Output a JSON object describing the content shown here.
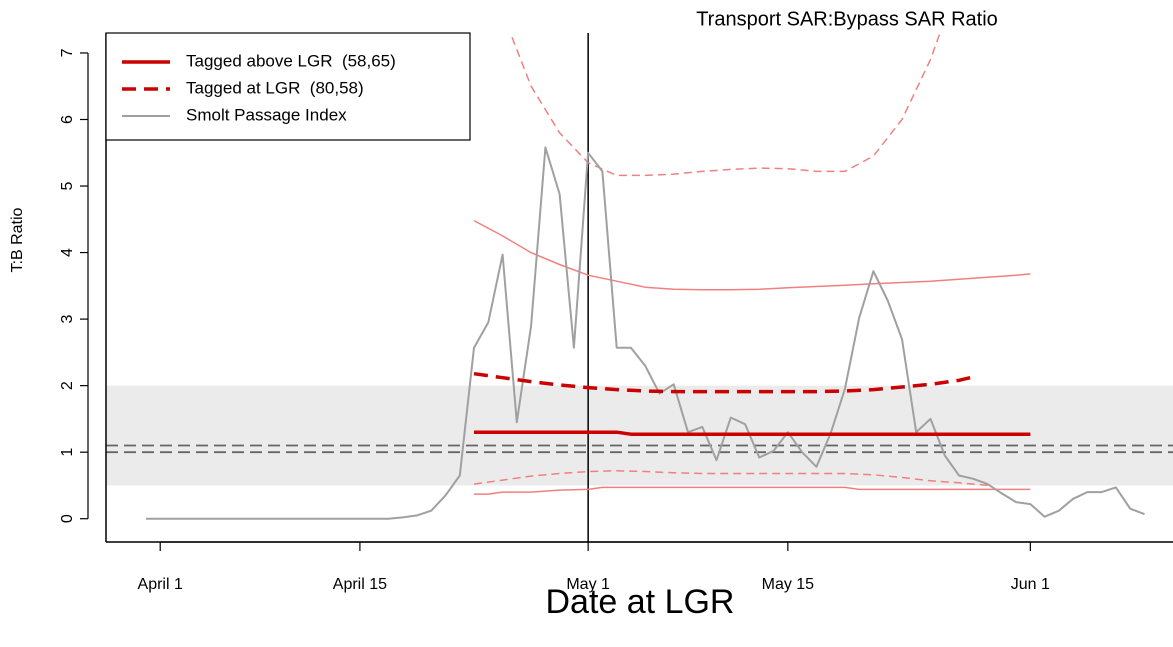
{
  "chart_data": {
    "type": "line",
    "title": "Transport SAR:Bypass SAR Ratio",
    "x_label": "Date at LGR",
    "y_label": "T:B Ratio",
    "xlim": [
      -3.8,
      71
    ],
    "ylim": [
      -0.35,
      7.3
    ],
    "xticks": [
      {
        "value": 0,
        "label": "April 1"
      },
      {
        "value": 14,
        "label": "April 15"
      },
      {
        "value": 30,
        "label": "May 1"
      },
      {
        "value": 44,
        "label": "May 15"
      },
      {
        "value": 61,
        "label": "Jun 1"
      }
    ],
    "yticks": [
      0,
      1,
      2,
      3,
      4,
      5,
      6,
      7
    ],
    "band": [
      0.5,
      2
    ],
    "hlines": [
      1,
      1.1
    ],
    "vline": 30,
    "legend": "top-left",
    "series": [
      {
        "name": "Tagged above LGR  (58,65)",
        "color": "#cc0000",
        "style": "solid",
        "width": 3.5,
        "x": [
          22,
          26,
          30,
          32,
          33,
          61
        ],
        "values": [
          1.3,
          1.3,
          1.3,
          1.3,
          1.27,
          1.27
        ]
      },
      {
        "name": "Tagged at LGR  (80,58)",
        "color": "#cc0000",
        "style": "dashed",
        "width": 3.5,
        "x": [
          22,
          24,
          26,
          28,
          30,
          32,
          34,
          36,
          38,
          40,
          42,
          44,
          46,
          48,
          50,
          52,
          54,
          56,
          57
        ],
        "values": [
          2.18,
          2.12,
          2.06,
          2.01,
          1.97,
          1.94,
          1.92,
          1.91,
          1.91,
          1.91,
          1.91,
          1.91,
          1.91,
          1.92,
          1.94,
          1.98,
          2.02,
          2.08,
          2.13
        ]
      },
      {
        "name": "Smolt Passage Index",
        "color": "#a0a0a0",
        "style": "solid",
        "width": 2,
        "x": [
          -1,
          16,
          17,
          18,
          19,
          20,
          21,
          22,
          23,
          24,
          25,
          26,
          27,
          28,
          29,
          30,
          31,
          32,
          33,
          34,
          35,
          36,
          37,
          38,
          39,
          40,
          41,
          42,
          43,
          44,
          45,
          46,
          47,
          48,
          49,
          50,
          51,
          52,
          53,
          54,
          55,
          56,
          57,
          58,
          59,
          60,
          61,
          62,
          63,
          64,
          65,
          66,
          67,
          68,
          69
        ],
        "values": [
          0,
          0,
          0.02,
          0.05,
          0.12,
          0.35,
          0.65,
          2.57,
          2.95,
          3.97,
          1.45,
          2.9,
          5.58,
          4.88,
          2.57,
          5.5,
          5.22,
          2.57,
          2.57,
          2.3,
          1.88,
          2.02,
          1.3,
          1.38,
          0.88,
          1.52,
          1.42,
          0.92,
          1.02,
          1.3,
          1.0,
          0.78,
          1.28,
          1.95,
          3.02,
          3.72,
          3.28,
          2.7,
          1.3,
          1.5,
          0.95,
          0.65,
          0.6,
          0.52,
          0.38,
          0.25,
          0.22,
          0.03,
          0.12,
          0.3,
          0.4,
          0.4,
          0.47,
          0.15,
          0.07
        ]
      },
      {
        "color": "#f08080",
        "style": "solid",
        "width": 1.5,
        "x": [
          22,
          24,
          26,
          28,
          30,
          32,
          34,
          36,
          38,
          40,
          42,
          44,
          46,
          48,
          50,
          52,
          54,
          56,
          58,
          60,
          61
        ],
        "values": [
          4.48,
          4.25,
          4.0,
          3.82,
          3.66,
          3.57,
          3.48,
          3.45,
          3.44,
          3.44,
          3.45,
          3.47,
          3.49,
          3.51,
          3.53,
          3.55,
          3.57,
          3.6,
          3.63,
          3.66,
          3.68
        ]
      },
      {
        "color": "#f08080",
        "style": "solid",
        "width": 1.5,
        "x": [
          22,
          23,
          24,
          26,
          28,
          30,
          31,
          48,
          49,
          61
        ],
        "values": [
          0.37,
          0.37,
          0.4,
          0.4,
          0.43,
          0.44,
          0.47,
          0.47,
          0.44,
          0.44
        ]
      },
      {
        "color": "#f08080",
        "style": "dashed",
        "width": 1.5,
        "x": [
          24,
          26,
          28,
          30,
          32,
          34,
          36,
          38,
          40,
          42,
          44,
          46,
          48,
          50,
          52,
          54,
          55
        ],
        "values": [
          7.6,
          6.5,
          5.8,
          5.35,
          5.16,
          5.16,
          5.18,
          5.22,
          5.25,
          5.27,
          5.26,
          5.22,
          5.22,
          5.45,
          6.0,
          6.9,
          7.5
        ]
      },
      {
        "color": "#f08080",
        "style": "dashed",
        "width": 1.5,
        "x": [
          22,
          24,
          26,
          28,
          30,
          32,
          34,
          36,
          38,
          40,
          42,
          44,
          46,
          48,
          50,
          52,
          54,
          56,
          58
        ],
        "values": [
          0.52,
          0.58,
          0.64,
          0.68,
          0.71,
          0.72,
          0.71,
          0.69,
          0.68,
          0.68,
          0.68,
          0.68,
          0.68,
          0.68,
          0.66,
          0.62,
          0.57,
          0.54,
          0.5
        ]
      }
    ]
  }
}
